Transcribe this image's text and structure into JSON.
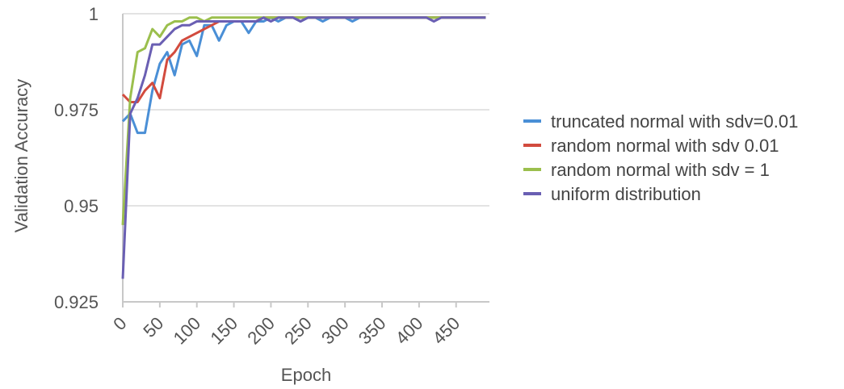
{
  "chart_data": {
    "type": "line",
    "xlabel": "Epoch",
    "ylabel": "Validation Accuracy",
    "xlim": [
      0,
      495
    ],
    "ylim": [
      0.925,
      1
    ],
    "yticks": [
      {
        "value": 0.925,
        "label": "0.925"
      },
      {
        "value": 0.95,
        "label": "0.95"
      },
      {
        "value": 0.975,
        "label": "0.975"
      },
      {
        "value": 1,
        "label": "1"
      }
    ],
    "xticks": [
      {
        "value": 0,
        "label": "0"
      },
      {
        "value": 50,
        "label": "50"
      },
      {
        "value": 100,
        "label": "100"
      },
      {
        "value": 150,
        "label": "150"
      },
      {
        "value": 200,
        "label": "200"
      },
      {
        "value": 250,
        "label": "250"
      },
      {
        "value": 300,
        "label": "300"
      },
      {
        "value": 350,
        "label": "350"
      },
      {
        "value": 400,
        "label": "400"
      },
      {
        "value": 450,
        "label": "450"
      }
    ],
    "grid": true,
    "legend_position": "right",
    "x": [
      0,
      10,
      20,
      30,
      40,
      50,
      60,
      70,
      80,
      90,
      100,
      110,
      120,
      130,
      140,
      150,
      160,
      170,
      180,
      190,
      200,
      210,
      220,
      230,
      240,
      250,
      260,
      270,
      280,
      290,
      300,
      310,
      320,
      330,
      340,
      350,
      360,
      370,
      380,
      390,
      400,
      410,
      420,
      430,
      440,
      450,
      460,
      470,
      480,
      490
    ],
    "series": [
      {
        "name": "truncated normal with sdv=0.01",
        "color": "#4a8fd6",
        "values": [
          0.972,
          0.974,
          0.969,
          0.969,
          0.98,
          0.987,
          0.99,
          0.984,
          0.992,
          0.993,
          0.989,
          0.997,
          0.997,
          0.993,
          0.997,
          0.998,
          0.998,
          0.995,
          0.998,
          0.998,
          0.999,
          0.998,
          0.999,
          0.999,
          0.998,
          0.999,
          0.999,
          0.998,
          0.999,
          0.999,
          0.999,
          0.998,
          0.999,
          0.999,
          0.999,
          0.999,
          0.999,
          0.999,
          0.999,
          0.999,
          0.999,
          0.999,
          0.999,
          0.999,
          0.999,
          0.999,
          0.999,
          0.999,
          0.999,
          0.999
        ]
      },
      {
        "name": "random normal with sdv 0.01",
        "color": "#d24b3e",
        "values": [
          0.979,
          0.977,
          0.977,
          0.98,
          0.982,
          0.978,
          0.988,
          0.99,
          0.993,
          0.994,
          0.995,
          0.996,
          0.997,
          0.998,
          0.998,
          0.998,
          0.998,
          0.998,
          0.998,
          0.999,
          0.999,
          0.999,
          0.999,
          0.999,
          0.999,
          0.999,
          0.999,
          0.999,
          0.999,
          0.999,
          0.999,
          0.999,
          0.999,
          0.999,
          0.999,
          0.999,
          0.999,
          0.999,
          0.999,
          0.999,
          0.999,
          0.999,
          0.999,
          0.999,
          0.999,
          0.999,
          0.999,
          0.999,
          0.999,
          0.999
        ]
      },
      {
        "name": "random normal with sdv = 1",
        "color": "#9bbf4d",
        "values": [
          0.945,
          0.978,
          0.99,
          0.991,
          0.996,
          0.994,
          0.997,
          0.998,
          0.998,
          0.999,
          0.999,
          0.998,
          0.999,
          0.999,
          0.999,
          0.999,
          0.999,
          0.999,
          0.999,
          0.999,
          0.999,
          0.999,
          0.999,
          0.999,
          0.999,
          0.999,
          0.999,
          0.999,
          0.999,
          0.999,
          0.999,
          0.999,
          0.999,
          0.999,
          0.999,
          0.999,
          0.999,
          0.999,
          0.999,
          0.999,
          0.999,
          0.999,
          0.999,
          0.999,
          0.999,
          0.999,
          0.999,
          0.999,
          0.999,
          0.999
        ]
      },
      {
        "name": "uniform distribution",
        "color": "#6a5fb3",
        "values": [
          0.931,
          0.974,
          0.978,
          0.984,
          0.992,
          0.992,
          0.994,
          0.996,
          0.997,
          0.997,
          0.998,
          0.998,
          0.998,
          0.998,
          0.998,
          0.998,
          0.998,
          0.998,
          0.998,
          0.999,
          0.998,
          0.999,
          0.999,
          0.999,
          0.998,
          0.999,
          0.999,
          0.999,
          0.999,
          0.999,
          0.999,
          0.999,
          0.999,
          0.999,
          0.999,
          0.999,
          0.999,
          0.999,
          0.999,
          0.999,
          0.999,
          0.999,
          0.998,
          0.999,
          0.999,
          0.999,
          0.999,
          0.999,
          0.999,
          0.999
        ]
      }
    ]
  }
}
